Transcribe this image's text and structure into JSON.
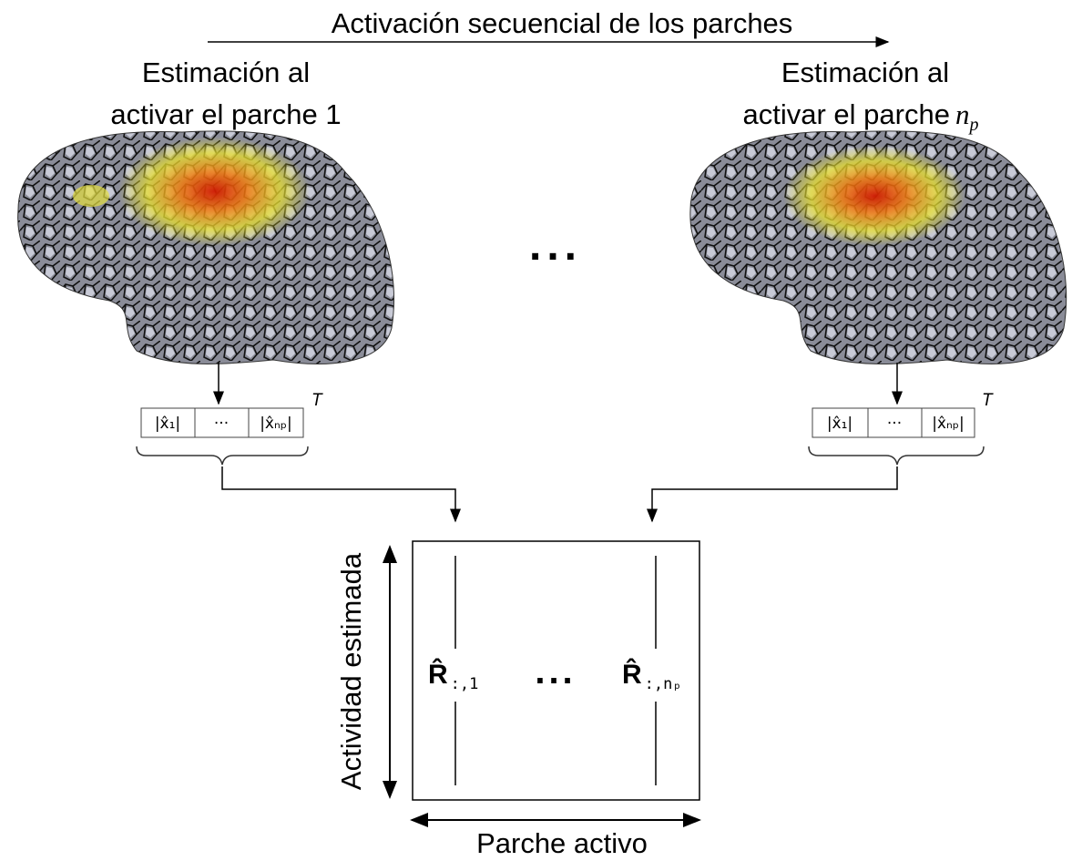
{
  "header": {
    "title": "Activación secuencial de los parches"
  },
  "panels": [
    {
      "label_line1": "Estimación al",
      "label_line2": "activar el parche 1",
      "label_math": null,
      "label_math_sub": null,
      "vector": {
        "cells": [
          "|x̂₁|",
          "···",
          "|x̂ₙₚ|"
        ],
        "transpose": "T"
      }
    },
    {
      "label_line1": "Estimación al",
      "label_line2": "activar el parche",
      "label_math": "n",
      "label_math_sub": "p",
      "vector": {
        "cells": [
          "|x̂₁|",
          "···",
          "|x̂ₙₚ|"
        ],
        "transpose": "T"
      }
    }
  ],
  "ellipsis": "...",
  "matrix": {
    "columns": [
      {
        "symbol": "R̂",
        "subscript": ":,1"
      },
      {
        "symbol": "R̂",
        "subscript": ":,nₚ"
      }
    ],
    "ellipsis": "...",
    "y_label": "Actividad estimada",
    "x_label": "Parche activo"
  }
}
